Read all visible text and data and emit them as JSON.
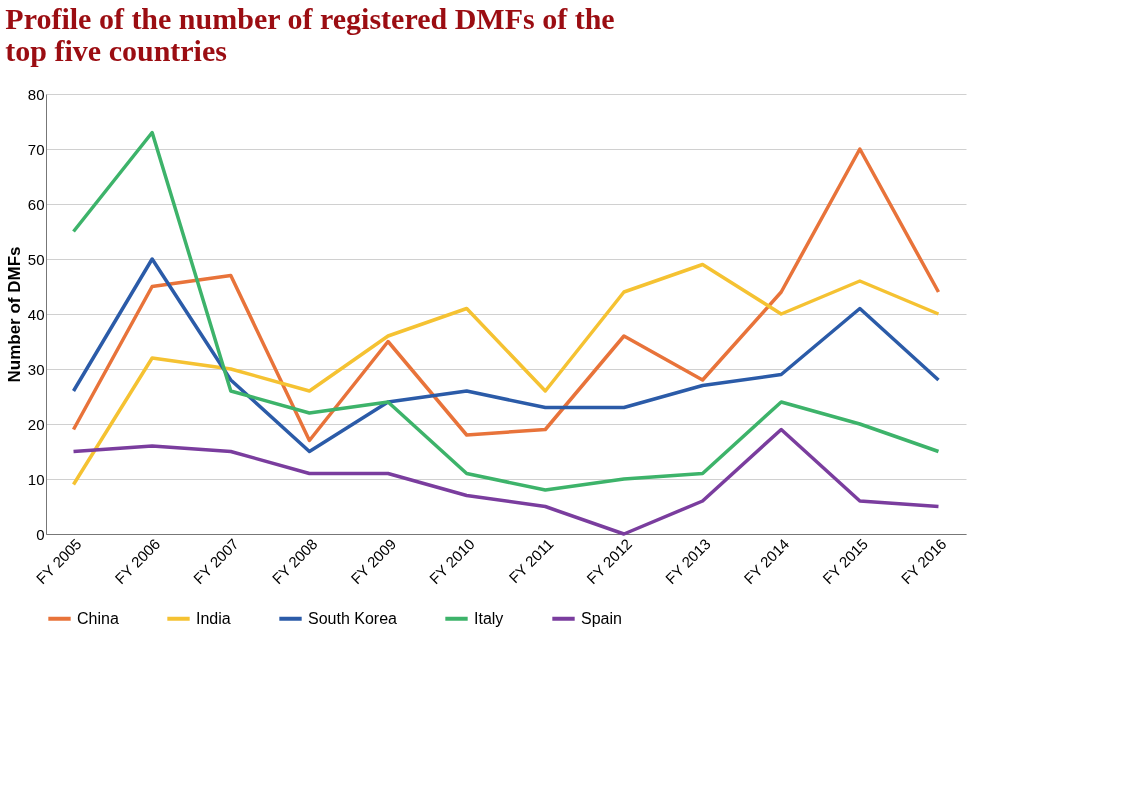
{
  "chart_data": {
    "type": "line",
    "title": "Profile of the number of registered DMFs of the top five countries",
    "ylabel": "Number of DMFs",
    "categories": [
      "FY 2005",
      "FY 2006",
      "FY 2007",
      "FY 2008",
      "FY 2009",
      "FY 2010",
      "FY 2011",
      "FY 2012",
      "FY 2013",
      "FY 2014",
      "FY 2015",
      "FY 2016"
    ],
    "series": [
      {
        "name": "China",
        "color": "#e8733a",
        "values": [
          19,
          45,
          47,
          17,
          35,
          18,
          19,
          36,
          28,
          44,
          70,
          44
        ]
      },
      {
        "name": "India",
        "color": "#f5c232",
        "values": [
          9,
          32,
          30,
          26,
          36,
          41,
          26,
          44,
          49,
          40,
          46,
          40
        ]
      },
      {
        "name": "South Korea",
        "color": "#2b5ba8",
        "values": [
          26,
          50,
          28,
          15,
          24,
          26,
          23,
          23,
          27,
          29,
          41,
          28
        ]
      },
      {
        "name": "Italy",
        "color": "#3db36a",
        "values": [
          55,
          73,
          26,
          22,
          24,
          11,
          8,
          10,
          11,
          24,
          20,
          15
        ]
      },
      {
        "name": "Spain",
        "color": "#7a3d9e",
        "values": [
          15,
          16,
          15,
          11,
          11,
          7,
          5,
          0,
          6,
          19,
          6,
          5
        ]
      }
    ],
    "ylim": [
      0,
      80
    ],
    "yticks": [
      0,
      10,
      20,
      30,
      40,
      50,
      60,
      70,
      80
    ],
    "grid": "y",
    "legend": "bottom",
    "marker": "none",
    "line_style": "solid"
  }
}
